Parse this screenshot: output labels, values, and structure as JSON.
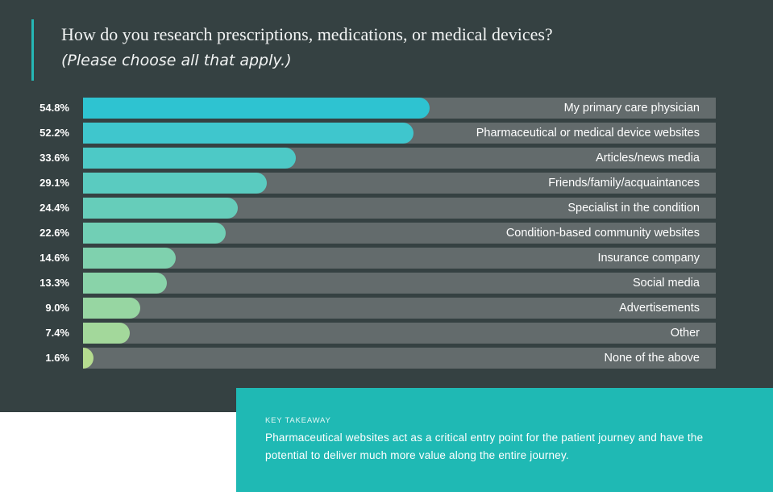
{
  "chart_data": {
    "type": "bar",
    "orientation": "horizontal",
    "title": "How do you research prescriptions, medications, or medical devices?",
    "subtitle": "(Please choose all that apply.)",
    "value_labels": [
      "54.8%",
      "52.2%",
      "33.6%",
      "29.1%",
      "24.4%",
      "22.6%",
      "14.6%",
      "13.3%",
      "9.0%",
      "7.4%",
      "1.6%"
    ],
    "categories": [
      "My primary care physician",
      "Pharmaceutical or medical device websites",
      "Articles/news media",
      "Friends/family/acquaintances",
      "Specialist in the condition",
      "Condition-based community websites",
      "Insurance company",
      "Social media",
      "Advertisements",
      "Other",
      "None of the above"
    ],
    "values": [
      54.8,
      52.2,
      33.6,
      29.1,
      24.4,
      22.6,
      14.6,
      13.3,
      9.0,
      7.4,
      1.6
    ],
    "xlim": [
      0,
      100
    ],
    "bar_colors": [
      "#2ec3d1",
      "#3fc6cd",
      "#4dc9c6",
      "#5acbc0",
      "#66cdba",
      "#71cfb5",
      "#7fd1ae",
      "#89d3a9",
      "#97d6a2",
      "#a3d89b",
      "#b5dc8f"
    ],
    "track_color": "#636b6c",
    "grid": false,
    "legend": "none"
  },
  "takeaway": {
    "label": "KEY TAKEAWAY",
    "text": "Pharmaceutical websites act as a critical entry point for the patient journey and have the potential to deliver much more value along the entire journey."
  },
  "colors": {
    "panel_bg": "#354142",
    "accent": "#25b7b5",
    "takeaway_bg": "#1fb9b4"
  }
}
